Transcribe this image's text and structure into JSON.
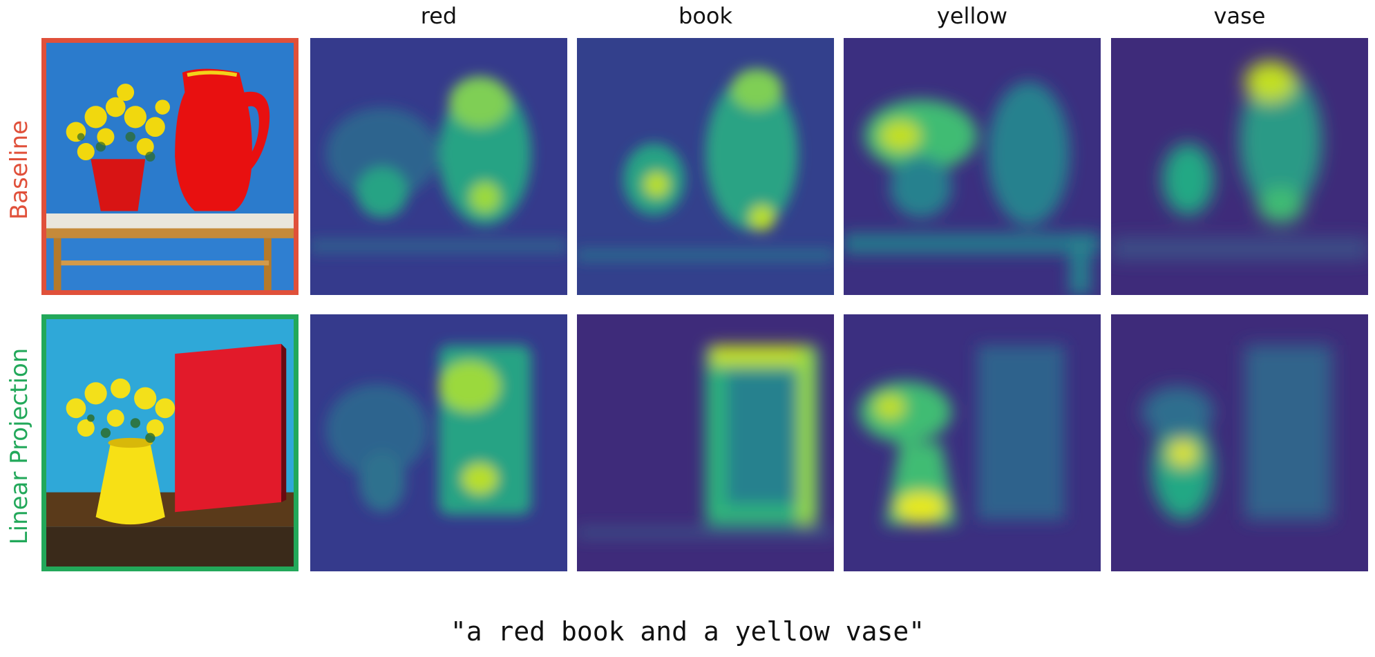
{
  "figure": {
    "columns": [
      "red",
      "book",
      "yellow",
      "vase"
    ],
    "rows": [
      {
        "label": "Baseline",
        "color": "#e0503a"
      },
      {
        "label": "Linear Projection",
        "color": "#22a85a"
      }
    ],
    "caption": "\"a red book and a yellow vase\""
  },
  "palette": {
    "viridis_low": "#440f6b",
    "viridis_mid": "#21918c",
    "viridis_high": "#e6e81f"
  }
}
